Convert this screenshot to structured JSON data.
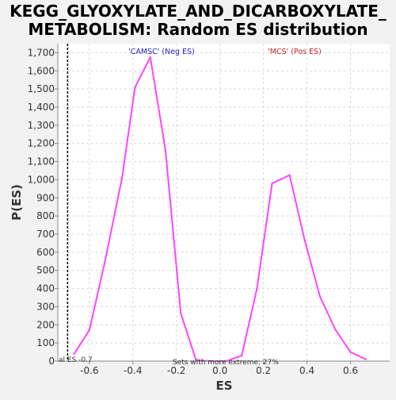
{
  "chart_data": {
    "type": "line",
    "title_lines": [
      "KEGG_GLYOXYLATE_AND_DICARBOXYLATE_",
      "METABOLISM: Random ES distribution"
    ],
    "xlabel": "ES",
    "ylabel": "P(ES)",
    "xlim": [
      -0.745,
      0.78
    ],
    "ylim": [
      0,
      1750
    ],
    "x_ticks": [
      -0.6,
      -0.4,
      -0.2,
      0.0,
      0.2,
      0.4,
      0.6
    ],
    "x_tick_labels": [
      "-0.6",
      "-0.4",
      "-0.2",
      "0.0",
      "0.2",
      "0.4",
      "0.6"
    ],
    "y_ticks": [
      0,
      100,
      200,
      300,
      400,
      500,
      600,
      700,
      800,
      900,
      1000,
      1100,
      1200,
      1300,
      1400,
      1500,
      1600,
      1700
    ],
    "y_tick_labels": [
      "0",
      "100",
      "200",
      "300",
      "400",
      "500",
      "600",
      "700",
      "800",
      "900",
      "1,000",
      "1,100",
      "1,200",
      "1,300",
      "1,400",
      "1,500",
      "1,600",
      "1,700"
    ],
    "grid": true,
    "series": [
      {
        "color": "#ff44ff",
        "x": [
          -0.67,
          -0.6,
          -0.53,
          -0.45,
          -0.39,
          -0.32,
          -0.25,
          -0.18,
          -0.11,
          -0.04,
          0.03,
          0.1,
          0.17,
          0.24,
          0.32,
          0.39,
          0.46,
          0.53,
          0.6,
          0.67
        ],
        "y": [
          40,
          170,
          540,
          1010,
          1510,
          1675,
          1160,
          265,
          5,
          0,
          0,
          30,
          400,
          980,
          1025,
          665,
          355,
          175,
          50,
          10
        ]
      }
    ],
    "actual_es": {
      "x": -0.7,
      "label": "al ES -0.7"
    },
    "neg_label": "'CAMSC' (Neg ES)",
    "pos_label": "'MCS' (Pos ES)",
    "neg_color": "#2222cc",
    "pos_color": "#cc2222",
    "bottom_note": "Sets with more extreme: 27%"
  }
}
